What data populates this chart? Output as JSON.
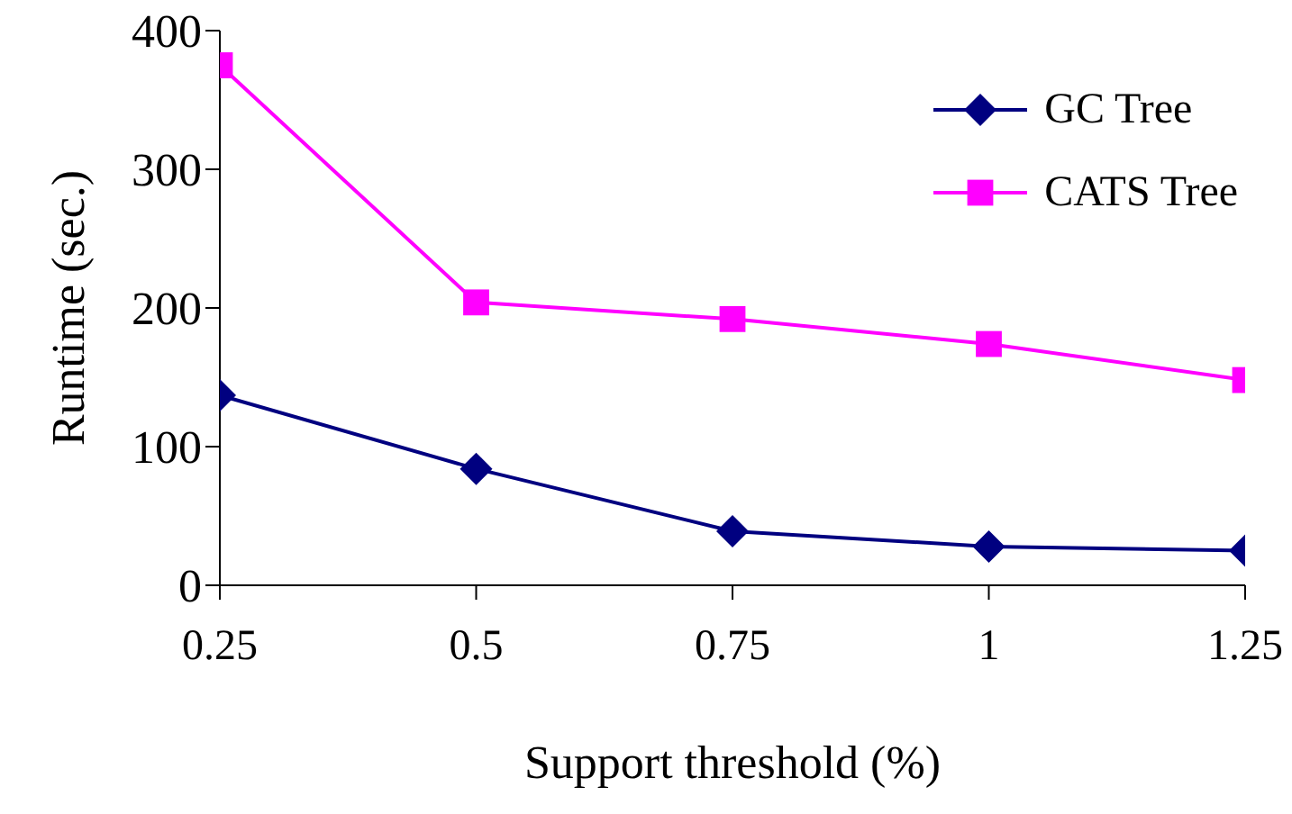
{
  "chart_data": {
    "type": "line",
    "xlabel": "Support threshold (%)",
    "ylabel": "Runtime (sec.)",
    "x": [
      0.25,
      0.5,
      0.75,
      1,
      1.25
    ],
    "xlim": [
      0.25,
      1.25
    ],
    "xticks": [
      0.25,
      0.5,
      0.75,
      1,
      1.25
    ],
    "ylim": [
      0,
      400
    ],
    "yticks": [
      0,
      100,
      200,
      300,
      400
    ],
    "grid": false,
    "legend": "top right",
    "series": [
      {
        "name": "GC Tree",
        "color": "#000080",
        "marker": "diamond",
        "values": [
          137,
          84,
          39,
          28,
          25
        ]
      },
      {
        "name": "CATS Tree",
        "color": "#ff00ff",
        "marker": "square",
        "values": [
          375,
          204,
          192,
          174,
          148
        ]
      }
    ]
  }
}
